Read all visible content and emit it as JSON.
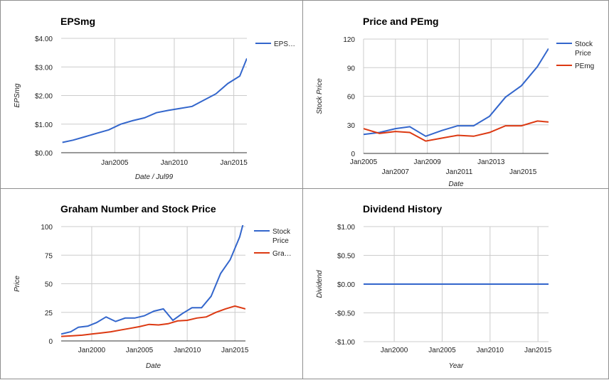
{
  "chart_data": [
    {
      "type": "line",
      "title": "EPSmg",
      "xlabel": "Date / Jul99",
      "ylabel": "EPSmg",
      "xlim": [
        2000.5,
        2016.1
      ],
      "ylim": [
        0,
        4
      ],
      "y_ticks": [
        0,
        1,
        2,
        3,
        4
      ],
      "y_tick_labels": [
        "$0.00",
        "$1.00",
        "$2.00",
        "$3.00",
        "$4.00"
      ],
      "x_ticks": [
        2005,
        2010,
        2015
      ],
      "x_tick_labels": [
        "Jan2005",
        "Jan2010",
        "Jan2015"
      ],
      "legend_position": "right",
      "series": [
        {
          "name": "EPS…",
          "color": "#3366cc",
          "x": [
            2000.6,
            2001.5,
            2002.5,
            2003.5,
            2004.5,
            2005.5,
            2006.5,
            2007.5,
            2008.5,
            2009.5,
            2010.5,
            2011.5,
            2012.5,
            2013.5,
            2014.5,
            2015.5,
            2016.1
          ],
          "y": [
            0.36,
            0.44,
            0.56,
            0.68,
            0.8,
            1.0,
            1.12,
            1.22,
            1.4,
            1.48,
            1.55,
            1.62,
            1.84,
            2.06,
            2.42,
            2.68,
            3.3
          ]
        }
      ]
    },
    {
      "type": "line",
      "title": "Price and PEmg",
      "xlabel": "Date",
      "ylabel": "Stock Price",
      "xlim": [
        2005.0,
        2016.6
      ],
      "ylim": [
        0,
        120
      ],
      "y_ticks": [
        0,
        30,
        60,
        90,
        120
      ],
      "y_tick_labels": [
        "0",
        "30",
        "60",
        "90",
        "120"
      ],
      "x_ticks": [
        2005,
        2007,
        2009,
        2011,
        2013,
        2015
      ],
      "x_tick_labels": [
        "Jan2005",
        "Jan2007",
        "Jan2009",
        "Jan2011",
        "Jan2013",
        "Jan2015"
      ],
      "legend_position": "right",
      "series": [
        {
          "name": "Stock Price",
          "color": "#3366cc",
          "x": [
            2005.0,
            2006.0,
            2007.0,
            2007.9,
            2008.9,
            2009.9,
            2010.9,
            2011.9,
            2012.9,
            2013.9,
            2014.9,
            2015.9,
            2016.6
          ],
          "y": [
            20,
            22,
            26,
            28,
            18,
            24,
            29,
            29,
            39,
            59,
            71,
            91,
            110
          ]
        },
        {
          "name": "PEmg",
          "color": "#dc3912",
          "x": [
            2005.0,
            2006.0,
            2007.0,
            2007.9,
            2008.9,
            2009.9,
            2010.9,
            2011.9,
            2012.9,
            2013.9,
            2014.9,
            2015.9,
            2016.6
          ],
          "y": [
            26,
            21,
            23,
            22,
            13,
            16,
            19,
            18,
            22,
            29,
            29,
            34,
            33
          ]
        }
      ]
    },
    {
      "type": "line",
      "title": "Graham Number and Stock Price",
      "xlabel": "Date",
      "ylabel": "Price",
      "xlim": [
        1996.8,
        2016.1
      ],
      "ylim": [
        0,
        100
      ],
      "y_ticks": [
        0,
        25,
        50,
        75,
        100
      ],
      "y_tick_labels": [
        "0",
        "25",
        "50",
        "75",
        "100"
      ],
      "x_ticks": [
        2000,
        2005,
        2010,
        2015
      ],
      "x_tick_labels": [
        "Jan2000",
        "Jan2005",
        "Jan2010",
        "Jan2015"
      ],
      "legend_position": "right",
      "series": [
        {
          "name": "Stock Price",
          "color": "#3366cc",
          "x": [
            1996.8,
            1997.8,
            1998.6,
            1999.6,
            2000.5,
            2001.5,
            2002.5,
            2003.5,
            2004.5,
            2005.5,
            2006.5,
            2007.5,
            2008.5,
            2009.5,
            2010.5,
            2011.5,
            2012.5,
            2013.5,
            2014.5,
            2015.5,
            2016.1
          ],
          "y": [
            6,
            8,
            12,
            13,
            16,
            21,
            17,
            20,
            20,
            22,
            26,
            28,
            18,
            24,
            29,
            29,
            39,
            59,
            71,
            91,
            110
          ]
        },
        {
          "name": "Gra…",
          "color": "#dc3912",
          "x": [
            1996.8,
            1998.0,
            1999.0,
            2000.0,
            2001.0,
            2002.0,
            2003.0,
            2004.0,
            2005.0,
            2006.0,
            2007.0,
            2008.0,
            2009.0,
            2010.0,
            2011.0,
            2012.0,
            2013.0,
            2014.0,
            2015.0,
            2016.1
          ],
          "y": [
            4,
            4.5,
            5,
            6,
            7,
            8,
            9.5,
            11,
            12.5,
            14.5,
            14,
            15,
            17.5,
            18,
            20,
            21,
            25,
            28,
            30.5,
            28
          ]
        }
      ]
    },
    {
      "type": "line",
      "title": "Dividend History",
      "xlabel": "Year",
      "ylabel": "Dividend",
      "xlim": [
        1996.8,
        2016.1
      ],
      "ylim": [
        -1,
        1
      ],
      "y_ticks": [
        -1,
        -0.5,
        0,
        0.5,
        1
      ],
      "y_tick_labels": [
        "-$1.00",
        "-$0.50",
        "$0.00",
        "$0.50",
        "$1.00"
      ],
      "x_ticks": [
        2000,
        2005,
        2010,
        2015
      ],
      "x_tick_labels": [
        "Jan2000",
        "Jan2005",
        "Jan2010",
        "Jan2015"
      ],
      "legend_position": "none",
      "series": [
        {
          "color": "#3366cc",
          "x": [
            1996.8,
            2016.1
          ],
          "y": [
            0,
            0
          ]
        }
      ]
    }
  ]
}
